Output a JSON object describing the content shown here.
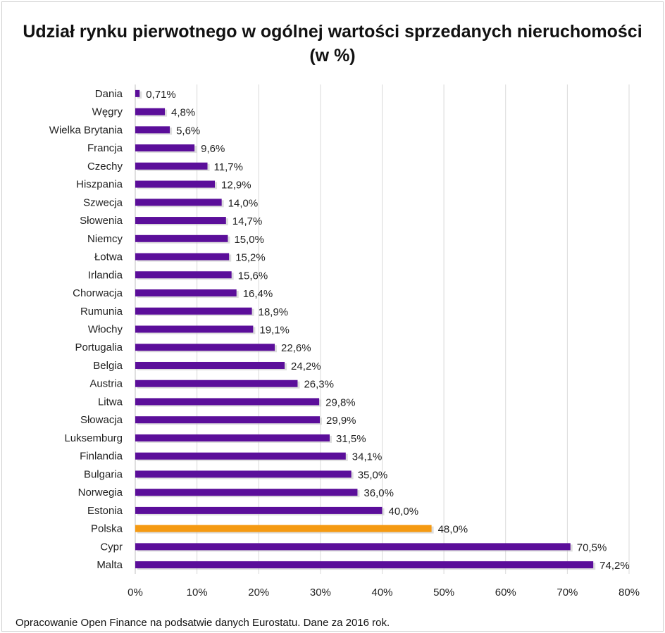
{
  "chart_data": {
    "type": "bar",
    "orientation": "horizontal",
    "title": "Udział rynku pierwotnego w ogólnej wartości sprzedanych nieruchomości",
    "subtitle": "(w %)",
    "categories": [
      "Dania",
      "Węgry",
      "Wielka Brytania",
      "Francja",
      "Czechy",
      "Hiszpania",
      "Szwecja",
      "Słowenia",
      "Niemcy",
      "Łotwa",
      "Irlandia",
      "Chorwacja",
      "Rumunia",
      "Włochy",
      "Portugalia",
      "Belgia",
      "Austria",
      "Litwa",
      "Słowacja",
      "Luksemburg",
      "Finlandia",
      "Bulgaria",
      "Norwegia",
      "Estonia",
      "Polska",
      "Cypr",
      "Malta"
    ],
    "values": [
      0.71,
      4.8,
      5.6,
      9.6,
      11.7,
      12.9,
      14.0,
      14.7,
      15.0,
      15.2,
      15.6,
      16.4,
      18.9,
      19.1,
      22.6,
      24.2,
      26.3,
      29.8,
      29.9,
      31.5,
      34.1,
      35.0,
      36.0,
      40.0,
      48.0,
      70.5,
      74.2
    ],
    "data_labels": [
      "0,71%",
      "4,8%",
      "5,6%",
      "9,6%",
      "11,7%",
      "12,9%",
      "14,0%",
      "14,7%",
      "15,0%",
      "15,2%",
      "15,6%",
      "16,4%",
      "18,9%",
      "19,1%",
      "22,6%",
      "24,2%",
      "26,3%",
      "29,8%",
      "29,9%",
      "31,5%",
      "34,1%",
      "35,0%",
      "36,0%",
      "40,0%",
      "48,0%",
      "70,5%",
      "74,2%"
    ],
    "x_ticks": [
      "0%",
      "10%",
      "20%",
      "30%",
      "40%",
      "50%",
      "60%",
      "70%",
      "80%"
    ],
    "xlim": [
      0,
      80
    ],
    "grid": "vertical",
    "legend": "none",
    "colors": {
      "default": "#5b0e9a",
      "highlight": "#f59a12",
      "highlight_category": "Polska",
      "grid": "#d9d9d9"
    }
  },
  "footer": "Opracowanie Open Finance na podsatwie danych Eurostatu.  Dane za 2016 rok."
}
